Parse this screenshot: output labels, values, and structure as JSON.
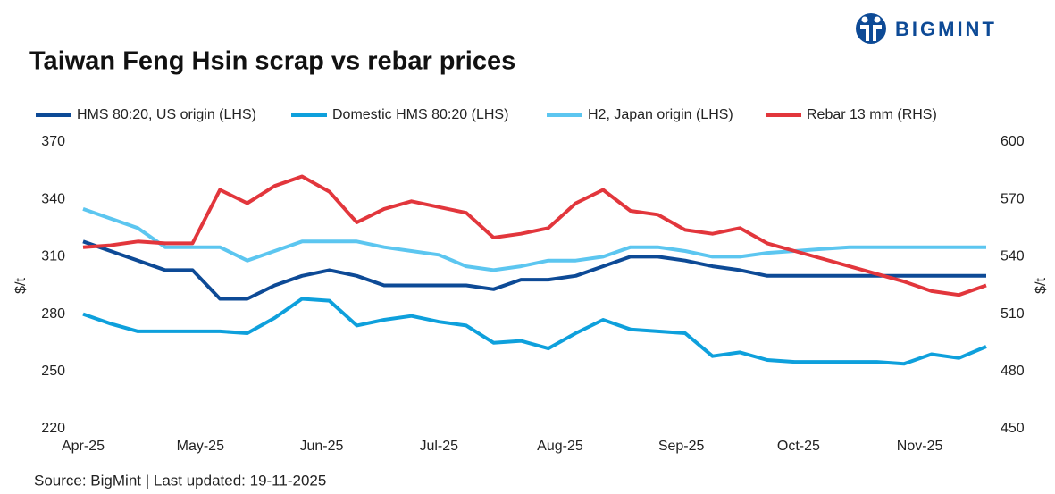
{
  "brand": "BIGMINT",
  "footer": "Source: BigMint |  Last updated: 19-11-2025",
  "chart_data": {
    "type": "line",
    "title": "Taiwan Feng Hsin scrap vs rebar prices",
    "ylabel": "$/t",
    "y2label": "$/t",
    "x": [
      0,
      7,
      14,
      21,
      28,
      35,
      42,
      49,
      56,
      63,
      70,
      77,
      84,
      91,
      98,
      105,
      112,
      119,
      126,
      133,
      140,
      147,
      154,
      161,
      168,
      175,
      182,
      189,
      196,
      203,
      210,
      217,
      224,
      231
    ],
    "xlim": [
      0,
      231
    ],
    "xticks": [
      {
        "value": 0,
        "label": "Apr-25"
      },
      {
        "value": 30,
        "label": "May-25"
      },
      {
        "value": 61,
        "label": "Jun-25"
      },
      {
        "value": 91,
        "label": "Jul-25"
      },
      {
        "value": 122,
        "label": "Aug-25"
      },
      {
        "value": 153,
        "label": "Sep-25"
      },
      {
        "value": 183,
        "label": "Oct-25"
      },
      {
        "value": 214,
        "label": "Nov-25"
      }
    ],
    "ylim": [
      220,
      370
    ],
    "yticks": [
      220,
      250,
      280,
      310,
      340,
      370
    ],
    "y2lim": [
      450,
      600
    ],
    "y2ticks": [
      450,
      480,
      510,
      540,
      570,
      600
    ],
    "grid": false,
    "series": [
      {
        "name": "HMS 80:20, US origin (LHS)",
        "color": "#0d4a96",
        "values": [
          318,
          313,
          308,
          303,
          303,
          288,
          288,
          295,
          300,
          303,
          300,
          295,
          295,
          295,
          295,
          293,
          298,
          298,
          300,
          305,
          310,
          310,
          308,
          305,
          303,
          300,
          300,
          300,
          300,
          300,
          300,
          300,
          300,
          300
        ]
      },
      {
        "name": "Domestic HMS 80:20 (LHS)",
        "color": "#0ea0dc",
        "values": [
          280,
          275,
          271,
          271,
          271,
          271,
          270,
          278,
          288,
          287,
          274,
          277,
          279,
          276,
          274,
          265,
          266,
          262,
          270,
          277,
          272,
          271,
          270,
          258,
          260,
          256,
          255,
          255,
          255,
          255,
          254,
          259,
          257,
          263
        ]
      },
      {
        "name": "H2, Japan origin (LHS)",
        "color": "#5cc6f0",
        "values": [
          335,
          330,
          325,
          315,
          315,
          315,
          308,
          313,
          318,
          318,
          318,
          315,
          313,
          311,
          305,
          303,
          305,
          308,
          308,
          310,
          315,
          315,
          313,
          310,
          310,
          312,
          313,
          314,
          315,
          315,
          315,
          315,
          315,
          315
        ]
      },
      {
        "name": "Rebar 13 mm (RHS)",
        "color": "#e2363c",
        "axis": "y2",
        "values": [
          545,
          546,
          548,
          547,
          547,
          575,
          568,
          577,
          582,
          574,
          558,
          565,
          569,
          566,
          563,
          550,
          552,
          555,
          568,
          575,
          564,
          562,
          554,
          552,
          555,
          547,
          543,
          539,
          535,
          531,
          527,
          522,
          520,
          525
        ]
      }
    ]
  }
}
